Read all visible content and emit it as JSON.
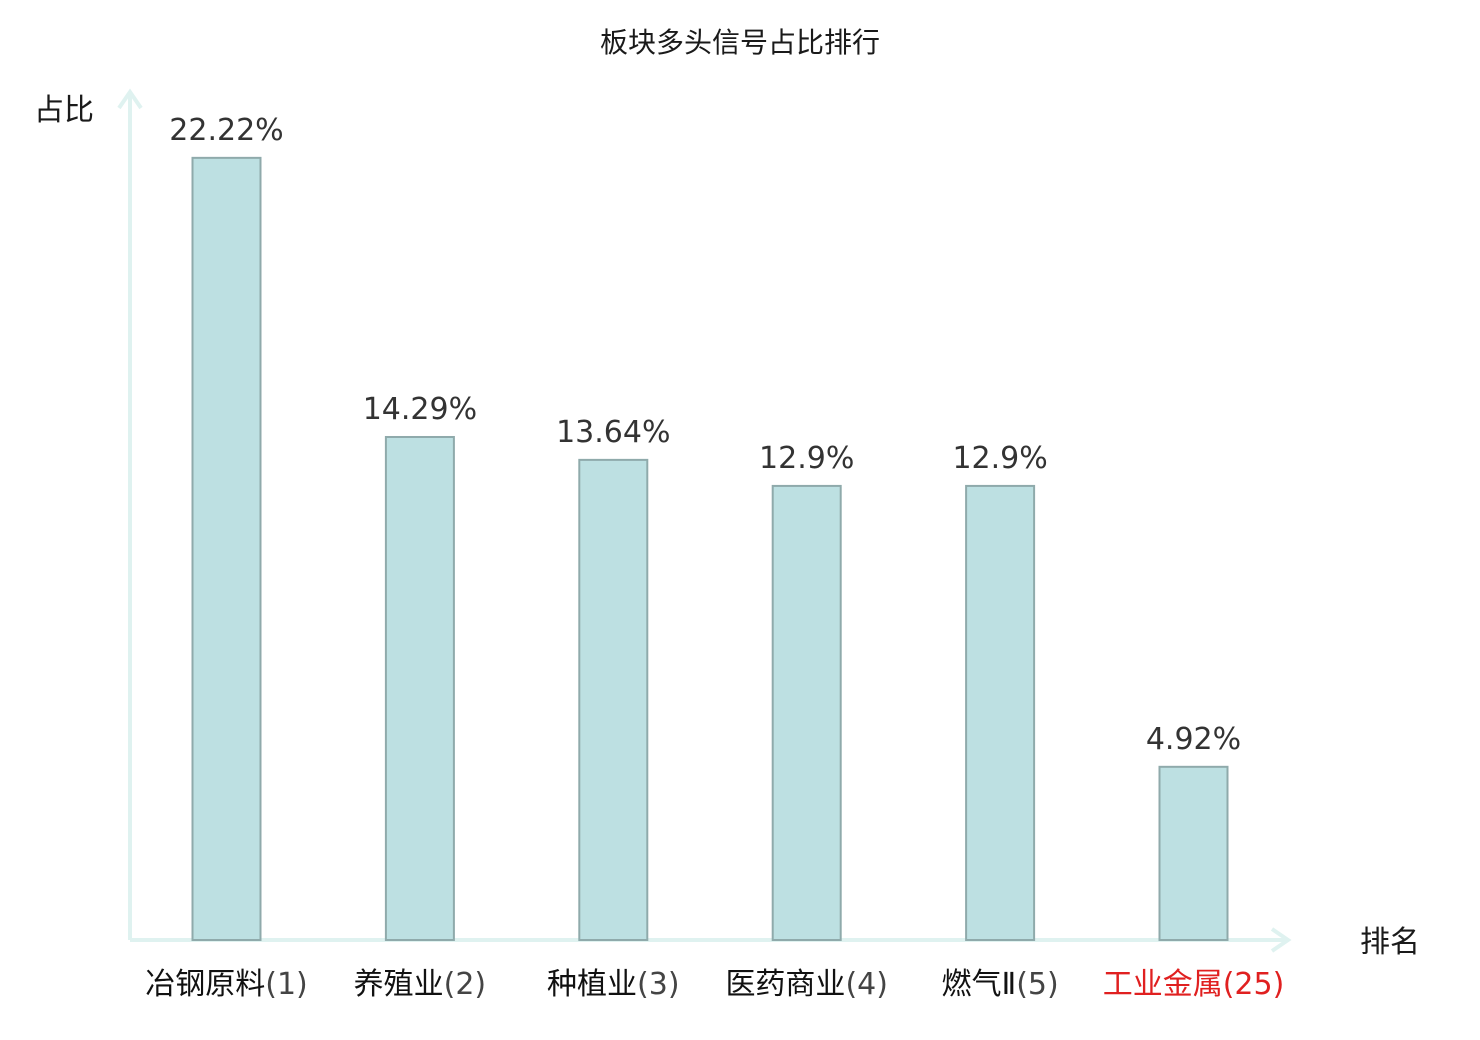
{
  "chart_data": {
    "type": "bar",
    "title": "板块多头信号占比排行",
    "ylabel": "占比",
    "xlabel": "排名",
    "ylim": [
      0,
      25
    ],
    "grid": false,
    "categories": [
      {
        "name": "冶钢原料",
        "rank": "(1)",
        "highlight": false
      },
      {
        "name": "养殖业",
        "rank": "(2)",
        "highlight": false
      },
      {
        "name": "种植业",
        "rank": "(3)",
        "highlight": false
      },
      {
        "name": "医药商业",
        "rank": "(4)",
        "highlight": false
      },
      {
        "name": "燃气Ⅱ",
        "rank": "(5)",
        "highlight": false
      },
      {
        "name": "工业金属",
        "rank": "(25)",
        "highlight": true
      }
    ],
    "values": [
      22.22,
      14.29,
      13.64,
      12.9,
      12.9,
      4.92
    ],
    "value_labels": [
      "22.22%",
      "14.29%",
      "13.64%",
      "12.9%",
      "12.9%",
      "4.92%"
    ],
    "colors": {
      "bar_fill": "#bde0e2",
      "bar_stroke": "#8faaab",
      "axis": "#dff2f0",
      "label_name": "#111111",
      "label_rank": "#444444",
      "highlight": "#e02020"
    }
  }
}
